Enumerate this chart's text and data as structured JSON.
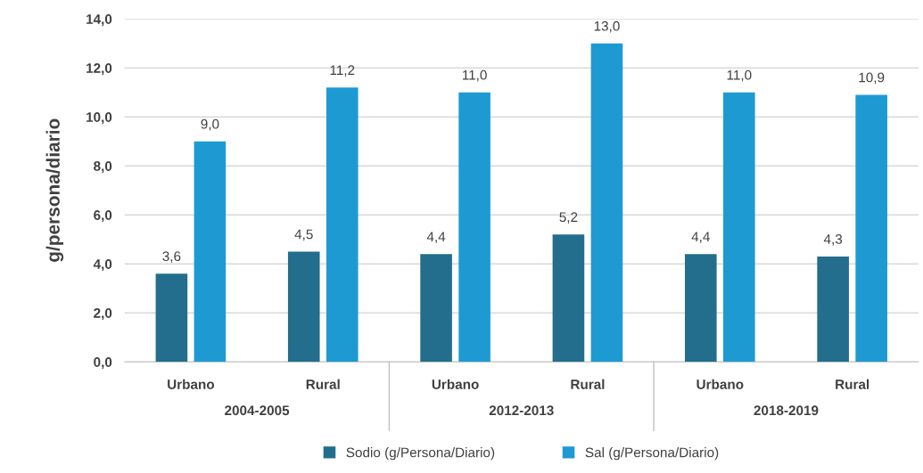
{
  "chart_data": {
    "type": "bar",
    "ylabel": "g/persona/diario",
    "categories": [
      "Urbano",
      "Rural",
      "Urbano",
      "Rural",
      "Urbano",
      "Rural"
    ],
    "annotations": [
      "2004-2005",
      "2012-2013",
      "2018-2019"
    ],
    "series": [
      {
        "name": "Sodio (g/Persona/Diario)",
        "color": "#226e8c",
        "values": [
          3.6,
          4.5,
          4.4,
          5.2,
          4.4,
          4.3
        ],
        "value_labels": [
          "3,6",
          "4,5",
          "4,4",
          "5,2",
          "4,4",
          "4,3"
        ]
      },
      {
        "name": "Sal (g/Persona/Diario)",
        "color": "#1e9ad3",
        "values": [
          9.0,
          11.2,
          11.0,
          13.0,
          11.0,
          10.9
        ],
        "value_labels": [
          "9,0",
          "11,2",
          "11,0",
          "13,0",
          "11,0",
          "10,9"
        ]
      }
    ],
    "ylim": [
      0,
      14
    ],
    "yticks": [
      {
        "value": 0,
        "label": "0,0"
      },
      {
        "value": 2,
        "label": "2,0"
      },
      {
        "value": 4,
        "label": "4,0"
      },
      {
        "value": 6,
        "label": "6,0"
      },
      {
        "value": 8,
        "label": "8,0"
      },
      {
        "value": 10,
        "label": "10,0"
      },
      {
        "value": 12,
        "label": "12,0"
      },
      {
        "value": 14,
        "label": "14,0"
      }
    ],
    "grid": "y",
    "legend": "bottom"
  }
}
